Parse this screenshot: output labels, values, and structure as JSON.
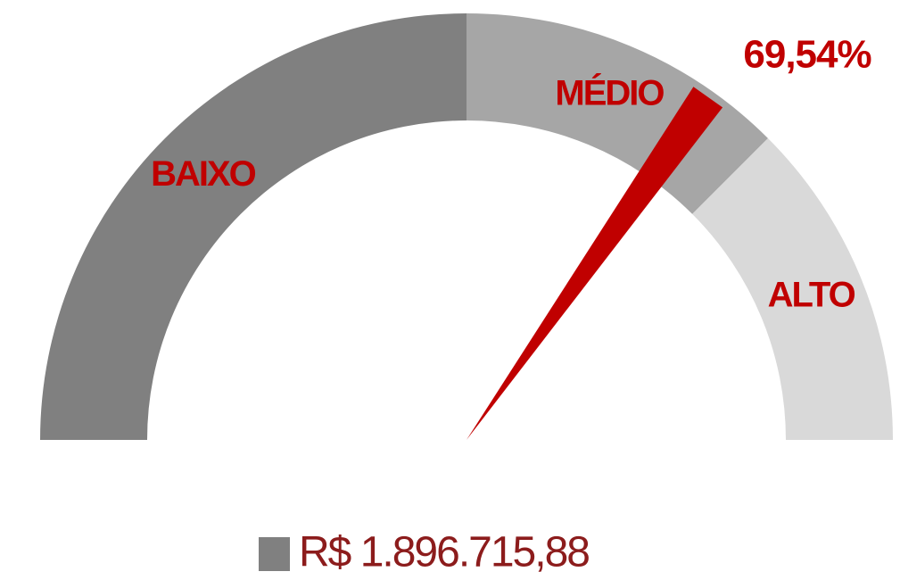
{
  "chart_data": {
    "type": "gauge",
    "range": [
      0,
      100
    ],
    "bands": [
      {
        "name": "BAIXO",
        "from": 0,
        "to": 50,
        "color": "#808080"
      },
      {
        "name": "MÉDIO",
        "from": 50,
        "to": 75,
        "color": "#a6a6a6"
      },
      {
        "name": "ALTO",
        "from": 75,
        "to": 100,
        "color": "#d9d9d9"
      }
    ],
    "values": [
      69.54
    ],
    "value_labels": [
      "69,54%"
    ],
    "needle_color": "#c00000",
    "legend": {
      "name": "R$ 1.896.715,88",
      "color": "#808080"
    }
  }
}
